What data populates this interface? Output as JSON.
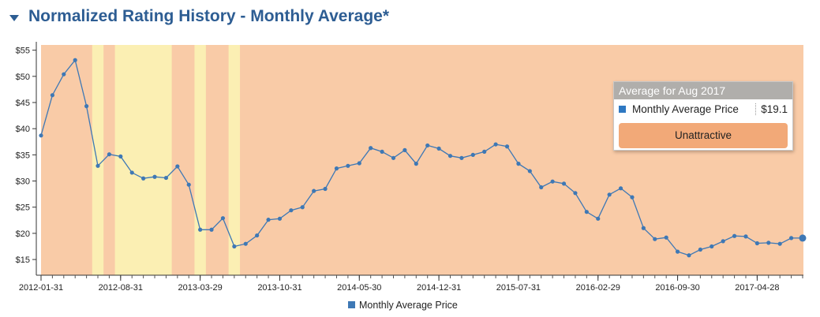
{
  "header": {
    "title": "Normalized Rating History - Monthly Average*",
    "caret_icon": "caret-down-icon"
  },
  "tooltip": {
    "heading": "Average for Aug 2017",
    "series_name": "Monthly Average Price",
    "value": "$19.1",
    "rating": "Unattractive",
    "colors": {
      "swatch": "#2e78c2",
      "rating_bg": "#f2a978",
      "heading_bg": "#b0aeab"
    }
  },
  "colors": {
    "line": "#3e78b5",
    "unattractive": "#f9cba7",
    "fair": "#fbefb3",
    "accent": "#2d5d93"
  },
  "chart_data": {
    "type": "line",
    "title": "Normalized Rating History - Monthly Average*",
    "xlabel": "",
    "ylabel": "",
    "ylim": [
      12,
      56
    ],
    "yticks": [
      15,
      20,
      25,
      30,
      35,
      40,
      45,
      50,
      55
    ],
    "ytick_labels": [
      "$15",
      "$20",
      "$25",
      "$30",
      "$35",
      "$40",
      "$45",
      "$50",
      "$55"
    ],
    "x_tick_labels": [
      "2012-01-31",
      "2012-08-31",
      "2013-03-29",
      "2013-10-31",
      "2014-05-30",
      "2014-12-31",
      "2015-07-31",
      "2016-02-29",
      "2016-09-30",
      "2017-04-28"
    ],
    "x_tick_indices": [
      0,
      7,
      14,
      21,
      28,
      35,
      42,
      49,
      56,
      63
    ],
    "legend": {
      "entries": [
        "Monthly Average Price"
      ],
      "position": "bottom-center"
    },
    "series": [
      {
        "name": "Monthly Average Price",
        "values": [
          38.7,
          46.4,
          50.4,
          53.1,
          44.3,
          32.9,
          35.1,
          34.7,
          31.6,
          30.5,
          30.8,
          30.6,
          32.8,
          29.3,
          20.7,
          20.7,
          22.9,
          17.5,
          18.0,
          19.6,
          22.6,
          22.8,
          24.4,
          25.0,
          28.1,
          28.5,
          32.4,
          32.9,
          33.4,
          36.3,
          35.6,
          34.4,
          35.9,
          33.3,
          36.8,
          36.2,
          34.8,
          34.4,
          35.0,
          35.6,
          37.0,
          36.6,
          33.3,
          31.9,
          28.8,
          29.9,
          29.5,
          27.7,
          24.1,
          22.8,
          27.4,
          28.6,
          26.9,
          21.0,
          18.9,
          19.2,
          16.5,
          15.8,
          16.9,
          17.5,
          18.5,
          19.5,
          19.4,
          18.1,
          18.2,
          18.0,
          19.1,
          19.1
        ]
      }
    ],
    "rating_bands": [
      {
        "rating": "Fair",
        "from_index": 4.5,
        "to_index": 5.5
      },
      {
        "rating": "Fair",
        "from_index": 6.5,
        "to_index": 11.5
      },
      {
        "rating": "Fair",
        "from_index": 13.5,
        "to_index": 14.5
      },
      {
        "rating": "Fair",
        "from_index": 16.5,
        "to_index": 17.5
      }
    ],
    "highlight_index": 67
  }
}
